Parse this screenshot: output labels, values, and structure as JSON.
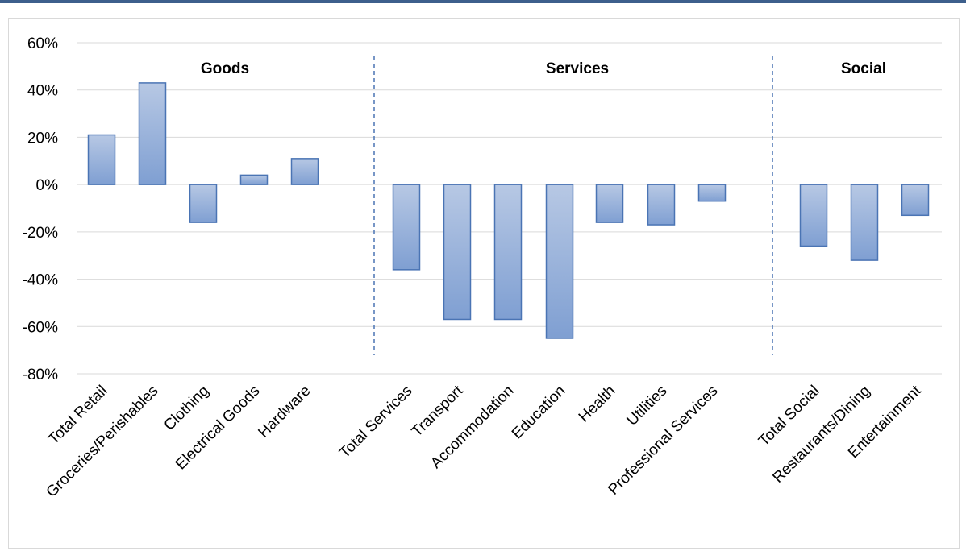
{
  "chart_data": {
    "type": "bar",
    "categories": [
      "Total Retail",
      "Groceries/Perishables",
      "Clothing",
      "Electrical Goods",
      "Hardware",
      "Total Services",
      "Transport",
      "Accommodation",
      "Education",
      "Health",
      "Utilities",
      "Professional Services",
      "Total Social",
      "Restaurants/Dining",
      "Entertainment"
    ],
    "values": [
      21,
      43,
      -16,
      4,
      11,
      -36,
      -57,
      -57,
      -65,
      -16,
      -17,
      -7,
      -26,
      -32,
      -13
    ],
    "groups": [
      {
        "label": "Goods",
        "members": [
          0,
          1,
          2,
          3,
          4
        ]
      },
      {
        "label": "Services",
        "members": [
          5,
          6,
          7,
          8,
          9,
          10,
          11
        ]
      },
      {
        "label": "Social",
        "members": [
          12,
          13,
          14
        ]
      }
    ],
    "ylim": [
      -80,
      60
    ],
    "yticks": [
      "60%",
      "40%",
      "20%",
      "0%",
      "-20%",
      "-40%",
      "-60%",
      "-80%"
    ],
    "ytick_values": [
      60,
      40,
      20,
      0,
      -20,
      -40,
      -60,
      -80
    ],
    "grid": true,
    "legend": "none",
    "colors": {
      "bar_top": "#b7c8e4",
      "bar_bottom": "#7f9fd2",
      "bar_edge": "#4a74b4",
      "grid": "#d9d9d9",
      "divider": "#4a74b4",
      "top_bar": "#3d5f8c"
    }
  }
}
